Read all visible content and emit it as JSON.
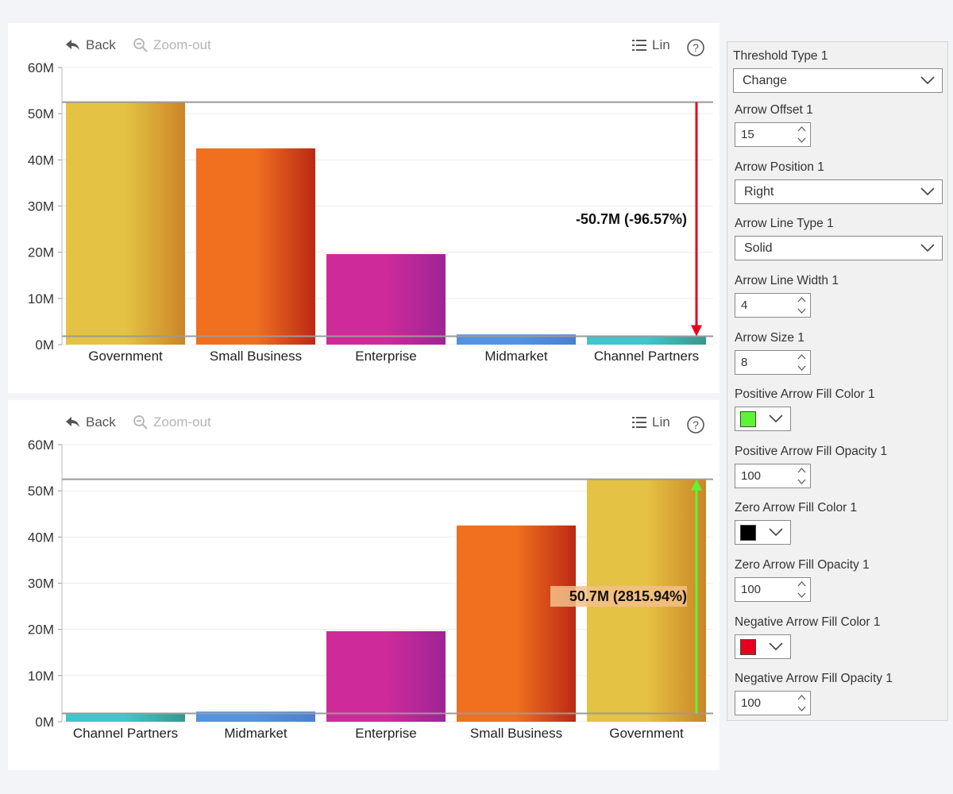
{
  "toolbar": {
    "back_label": "Back",
    "zoomout_label": "Zoom-out",
    "scale_label": "Lin",
    "icons": [
      "back-arrow-icon",
      "zoom-out-icon",
      "list-icon",
      "help-icon"
    ]
  },
  "chart_data": [
    {
      "type": "bar",
      "categories": [
        "Government",
        "Small Business",
        "Enterprise",
        "Midmarket",
        "Channel Partners"
      ],
      "values": [
        52.5,
        42.5,
        19.6,
        2.2,
        1.8
      ],
      "colors": [
        [
          "#e4c243",
          "#cc8526"
        ],
        [
          "#f07020",
          "#bc2914"
        ],
        [
          "#cf2a9a",
          "#9e2496"
        ],
        [
          "#5393e4",
          "#4a7fd2"
        ],
        [
          "#3fc6cf",
          "#37988b"
        ]
      ],
      "ytick_labels": [
        "0M",
        "10M",
        "20M",
        "30M",
        "40M",
        "50M",
        "60M"
      ],
      "ylim": [
        0,
        60
      ],
      "unit": "M",
      "threshold_lines": [
        52.5,
        1.8
      ],
      "annotation": {
        "text": "-50.7M (-96.57%)",
        "from": 52.5,
        "to": 1.8,
        "direction": "down",
        "color": "#e8001c",
        "highlighted": false
      }
    },
    {
      "type": "bar",
      "categories": [
        "Channel Partners",
        "Midmarket",
        "Enterprise",
        "Small Business",
        "Government"
      ],
      "values": [
        1.8,
        2.2,
        19.6,
        42.5,
        52.5
      ],
      "colors": [
        [
          "#3fc6cf",
          "#37988b"
        ],
        [
          "#5393e4",
          "#4a7fd2"
        ],
        [
          "#cf2a9a",
          "#9e2496"
        ],
        [
          "#f07020",
          "#bc2914"
        ],
        [
          "#e4c243",
          "#cc8526"
        ]
      ],
      "ytick_labels": [
        "0M",
        "10M",
        "20M",
        "30M",
        "40M",
        "50M",
        "60M"
      ],
      "ylim": [
        0,
        60
      ],
      "unit": "M",
      "threshold_lines": [
        52.5,
        1.8
      ],
      "annotation": {
        "text": "50.7M (2815.94%)",
        "from": 1.8,
        "to": 52.5,
        "direction": "up",
        "color": "#5cf536",
        "highlighted": true
      }
    }
  ],
  "settings": {
    "threshold_type": {
      "label": "Threshold Type 1",
      "value": "Change"
    },
    "arrow_offset": {
      "label": "Arrow Offset 1",
      "value": "15"
    },
    "arrow_position": {
      "label": "Arrow Position 1",
      "value": "Right"
    },
    "arrow_line_type": {
      "label": "Arrow Line Type 1",
      "value": "Solid"
    },
    "arrow_line_width": {
      "label": "Arrow Line Width 1",
      "value": "4"
    },
    "arrow_size": {
      "label": "Arrow Size 1",
      "value": "8"
    },
    "positive_fill_color": {
      "label": "Positive Arrow Fill Color 1",
      "color": "#5cf536"
    },
    "positive_fill_opacity": {
      "label": "Positive Arrow Fill Opacity 1",
      "value": "100"
    },
    "zero_fill_color": {
      "label": "Zero Arrow Fill Color 1",
      "color": "#000000"
    },
    "zero_fill_opacity": {
      "label": "Zero Arrow Fill Opacity 1",
      "value": "100"
    },
    "negative_fill_color": {
      "label": "Negative Arrow Fill Color 1",
      "color": "#e8001c"
    },
    "negative_fill_opacity": {
      "label": "Negative Arrow Fill Opacity 1",
      "value": "100"
    }
  }
}
